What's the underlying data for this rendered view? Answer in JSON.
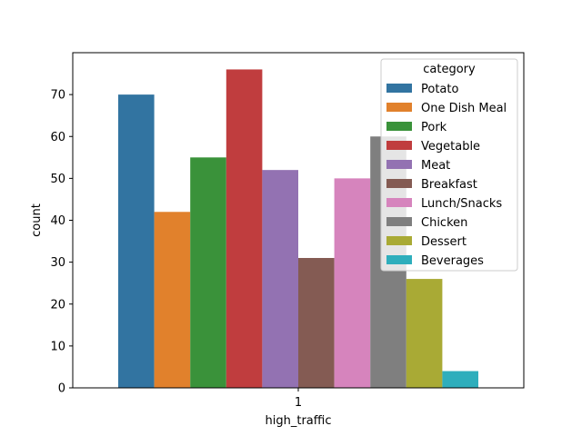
{
  "chart_data": {
    "type": "bar",
    "title": "",
    "xlabel": "high_traffic",
    "ylabel": "count",
    "categories": [
      "1"
    ],
    "ylim": [
      0,
      80
    ],
    "yticks": [
      0,
      10,
      20,
      30,
      40,
      50,
      60,
      70
    ],
    "grid": false,
    "legend": {
      "title": "category",
      "placement": "top-right"
    },
    "series": [
      {
        "name": "Potato",
        "values": [
          70
        ],
        "color": "#3274a1"
      },
      {
        "name": "One Dish Meal",
        "values": [
          42
        ],
        "color": "#e1812c"
      },
      {
        "name": "Pork",
        "values": [
          55
        ],
        "color": "#3a923a"
      },
      {
        "name": "Vegetable",
        "values": [
          76
        ],
        "color": "#c03d3e"
      },
      {
        "name": "Meat",
        "values": [
          52
        ],
        "color": "#9372b2"
      },
      {
        "name": "Breakfast",
        "values": [
          31
        ],
        "color": "#845b53"
      },
      {
        "name": "Lunch/Snacks",
        "values": [
          50
        ],
        "color": "#d684bd"
      },
      {
        "name": "Chicken",
        "values": [
          60
        ],
        "color": "#7f7f7f"
      },
      {
        "name": "Dessert",
        "values": [
          26
        ],
        "color": "#a9aa35"
      },
      {
        "name": "Beverages",
        "values": [
          4
        ],
        "color": "#2eaebc"
      }
    ]
  }
}
